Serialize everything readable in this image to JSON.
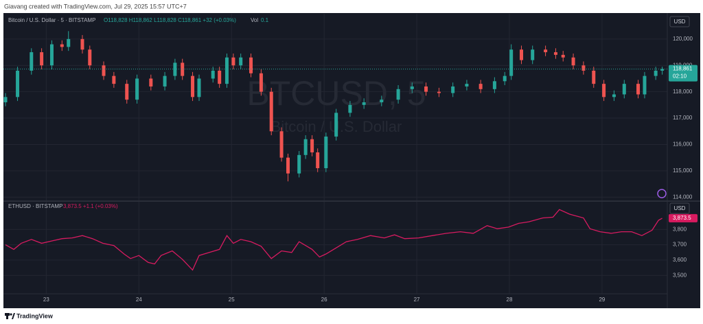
{
  "header": "Giavang created with TradingView.com, Jul 29, 2025 15:57 UTC+7",
  "footer": "TradingView",
  "chart_data": [
    {
      "type": "candlestick",
      "title": "Bitcoin / U.S. Dollar · 5 · BITSTAMP",
      "legend_values": "O118,828 H118,862 L118,828 C118,861 +32 (+0.03%)",
      "volume_label": "Vol",
      "volume": "0.1",
      "watermark": "BTCUSD, 5",
      "watermark_subtitle": "Bitcoin / U.S. Dollar",
      "currency": "USD",
      "last_label": "118,861",
      "countdown": "02:10",
      "up_color": "#26a69a",
      "down_color": "#ef5350",
      "x": [
        22.56,
        22.69,
        22.84,
        22.95,
        23.06,
        23.17,
        23.24,
        23.39,
        23.47,
        23.62,
        23.73,
        23.87,
        23.98,
        24.13,
        24.28,
        24.39,
        24.47,
        24.58,
        24.65,
        24.8,
        24.87,
        24.95,
        25.02,
        25.1,
        25.21,
        25.32,
        25.43,
        25.54,
        25.61,
        25.73,
        25.8,
        25.87,
        25.93,
        26.02,
        26.13,
        26.28,
        26.43,
        26.62,
        26.8,
        26.95,
        27.1,
        27.24,
        27.39,
        27.54,
        27.69,
        27.84,
        27.95,
        28.02,
        28.13,
        28.25,
        28.39,
        28.5,
        28.58,
        28.69,
        28.8,
        28.91,
        29.02,
        29.13,
        29.24,
        29.39,
        29.46,
        29.58,
        29.65
      ],
      "open": [
        117600,
        117800,
        118800,
        119500,
        119000,
        119800,
        119700,
        120000,
        119600,
        119000,
        118600,
        118300,
        117700,
        118500,
        118200,
        118600,
        119100,
        118600,
        117800,
        118500,
        118800,
        118300,
        119300,
        119000,
        119300,
        118700,
        118000,
        116500,
        115500,
        114900,
        115600,
        116200,
        115700,
        115100,
        116300,
        117200,
        117500,
        117600,
        117700,
        118100,
        118200,
        118000,
        117950,
        118200,
        118300,
        118100,
        118400,
        118600,
        119600,
        119200,
        119600,
        119500,
        119400,
        119300,
        119000,
        118800,
        118300,
        117800,
        117900,
        118300,
        117900,
        118600,
        118800
      ],
      "high": [
        117950,
        118950,
        119650,
        119650,
        119950,
        119950,
        120300,
        120150,
        119750,
        119150,
        118750,
        118450,
        118650,
        118650,
        118750,
        119250,
        119250,
        118750,
        118650,
        118950,
        118950,
        119450,
        119450,
        119450,
        119450,
        118850,
        118150,
        116650,
        115650,
        115750,
        116350,
        116350,
        115850,
        116450,
        117350,
        117650,
        117750,
        117850,
        118250,
        118350,
        118350,
        118150,
        118350,
        118450,
        118450,
        118550,
        118750,
        119800,
        119750,
        119750,
        119750,
        119650,
        119550,
        119450,
        119150,
        118950,
        118450,
        118050,
        118450,
        118450,
        118750,
        118950,
        118950
      ],
      "low": [
        117450,
        117650,
        118650,
        118850,
        118850,
        119550,
        119550,
        119450,
        118850,
        118450,
        118150,
        117550,
        117550,
        118050,
        118050,
        118450,
        118450,
        117650,
        117650,
        118350,
        118150,
        118150,
        118850,
        118850,
        118550,
        117850,
        116350,
        115350,
        114600,
        114750,
        115450,
        115550,
        114950,
        114950,
        116150,
        117050,
        117350,
        117450,
        117550,
        117950,
        117850,
        117800,
        117800,
        118050,
        117950,
        117950,
        118250,
        118450,
        119050,
        119050,
        119350,
        119250,
        119150,
        118850,
        118650,
        118150,
        117650,
        117650,
        117750,
        117750,
        117750,
        118450,
        118650
      ],
      "close": [
        117800,
        118800,
        119500,
        119000,
        119800,
        119700,
        120000,
        119600,
        119000,
        118600,
        118300,
        117700,
        118500,
        118200,
        118600,
        119100,
        118600,
        117800,
        118500,
        118800,
        118300,
        119300,
        119000,
        119300,
        118700,
        118000,
        116500,
        115500,
        114900,
        115600,
        116200,
        115700,
        115100,
        116300,
        117200,
        117500,
        117600,
        117700,
        118100,
        118200,
        118000,
        117950,
        118200,
        118300,
        118100,
        118400,
        118600,
        119600,
        119200,
        119600,
        119500,
        119400,
        119300,
        119000,
        118800,
        118300,
        117800,
        117900,
        118300,
        117900,
        118600,
        118800,
        118861
      ],
      "xlim": [
        22.56,
        29.69
      ],
      "ylim": [
        113850,
        120960
      ],
      "yticks": [
        {
          "value": 120000,
          "label": "120,000"
        },
        {
          "value": 119000,
          "label": "119,000"
        },
        {
          "value": 118000,
          "label": "118,000"
        },
        {
          "value": 117000,
          "label": "117,000"
        },
        {
          "value": 116000,
          "label": "116,000"
        },
        {
          "value": 115000,
          "label": "115,000"
        },
        {
          "value": 114000,
          "label": "114,000"
        }
      ],
      "grid": true
    },
    {
      "type": "line",
      "legend_values": "3,873.5 +1.1 (+0.03%)",
      "currency": "USD",
      "last_label": "3,873.5",
      "x": [
        22.56,
        22.65,
        22.73,
        22.84,
        22.95,
        23.06,
        23.17,
        23.28,
        23.39,
        23.5,
        23.61,
        23.73,
        23.84,
        23.91,
        24.0,
        24.1,
        24.17,
        24.24,
        24.36,
        24.47,
        24.58,
        24.65,
        24.76,
        24.87,
        24.95,
        25.02,
        25.1,
        25.21,
        25.32,
        25.43,
        25.54,
        25.65,
        25.73,
        25.8,
        25.87,
        25.95,
        26.02,
        26.13,
        26.24,
        26.36,
        26.5,
        26.65,
        26.76,
        26.87,
        27.02,
        27.17,
        27.32,
        27.47,
        27.61,
        27.76,
        27.87,
        27.99,
        28.1,
        28.21,
        28.36,
        28.47,
        28.54,
        28.65,
        28.8,
        28.87,
        28.98,
        29.1,
        29.21,
        29.32,
        29.43,
        29.54,
        29.61,
        29.65
      ],
      "series": [
        {
          "name": "ETHUSD · BITSTAMP",
          "color": "#d81b60",
          "values": [
            3700,
            3670,
            3710,
            3735,
            3710,
            3725,
            3740,
            3745,
            3760,
            3740,
            3710,
            3695,
            3640,
            3610,
            3630,
            3585,
            3575,
            3630,
            3660,
            3605,
            3535,
            3630,
            3650,
            3670,
            3760,
            3710,
            3735,
            3720,
            3690,
            3610,
            3660,
            3650,
            3720,
            3695,
            3670,
            3620,
            3640,
            3680,
            3720,
            3735,
            3760,
            3745,
            3765,
            3740,
            3745,
            3760,
            3775,
            3785,
            3775,
            3825,
            3805,
            3815,
            3840,
            3850,
            3875,
            3880,
            3930,
            3900,
            3875,
            3805,
            3785,
            3775,
            3785,
            3785,
            3760,
            3795,
            3860,
            3873.5
          ]
        }
      ],
      "xlim": [
        22.56,
        29.69
      ],
      "xticks": [
        23,
        24,
        25,
        26,
        27,
        28,
        29
      ],
      "ylim": [
        3380,
        3985
      ],
      "yticks": [
        {
          "value": 3800,
          "label": "3,800"
        },
        {
          "value": 3700,
          "label": "3,700"
        },
        {
          "value": 3600,
          "label": "3,600"
        },
        {
          "value": 3500,
          "label": "3,500"
        }
      ],
      "grid": true
    }
  ]
}
